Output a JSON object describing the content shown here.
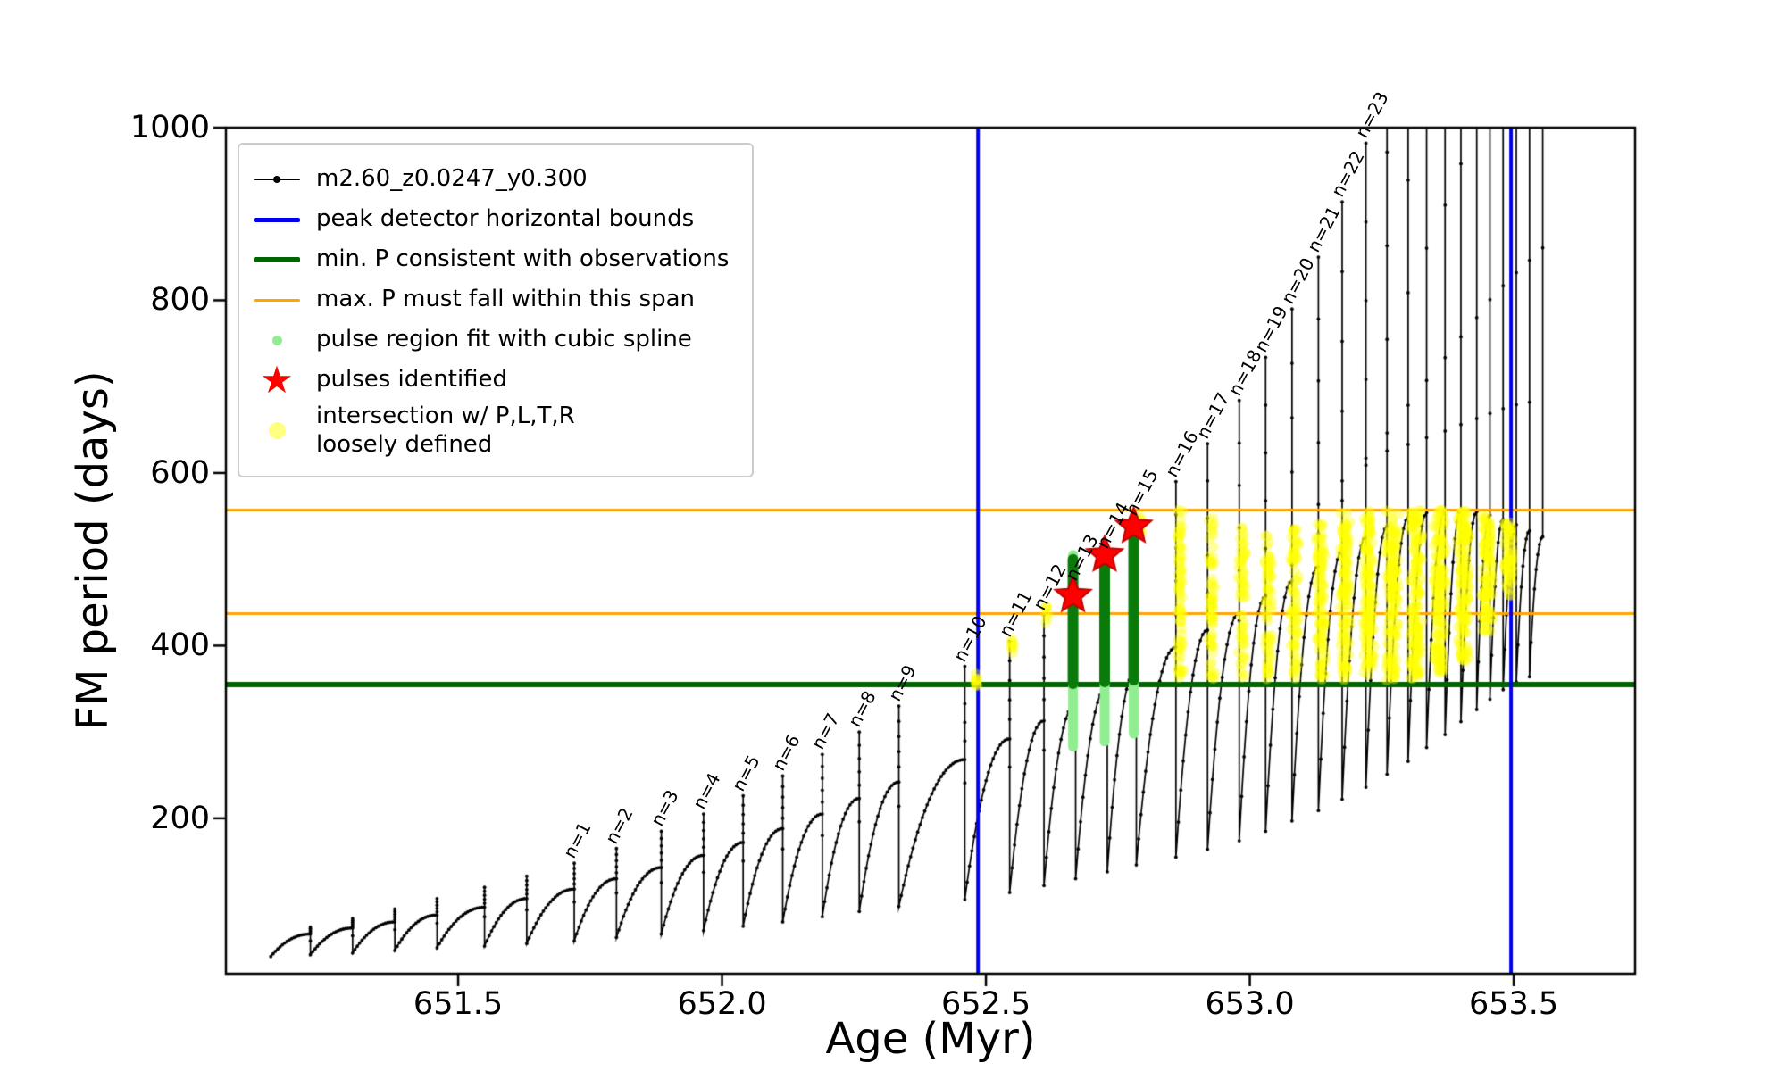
{
  "chart_data": {
    "type": "line",
    "title": "",
    "xlabel": "Age (Myr)",
    "ylabel": "FM period (days)",
    "xlim": [
      651.06,
      653.73
    ],
    "ylim": [
      20,
      1000
    ],
    "grid": false,
    "legend_position": "upper left",
    "x_ticks": [
      {
        "value": 651.5,
        "label": "651.5"
      },
      {
        "value": 652.0,
        "label": "652.0"
      },
      {
        "value": 652.5,
        "label": "652.5"
      },
      {
        "value": 653.0,
        "label": "653.0"
      },
      {
        "value": 653.5,
        "label": "653.5"
      }
    ],
    "y_ticks": [
      {
        "value": 200,
        "label": "200"
      },
      {
        "value": 400,
        "label": "400"
      },
      {
        "value": 600,
        "label": "600"
      },
      {
        "value": 800,
        "label": "800"
      },
      {
        "value": 1000,
        "label": "1000"
      }
    ],
    "series": {
      "name": "m2.60_z0.0247_y0.300",
      "color": "#000000",
      "start_x": 651.145,
      "teeth": [
        {
          "x": 651.22,
          "min": 40,
          "sh": 66,
          "pk": 74
        },
        {
          "x": 651.3,
          "min": 42,
          "sh": 73,
          "pk": 84
        },
        {
          "x": 651.38,
          "min": 44,
          "sh": 80,
          "pk": 95
        },
        {
          "x": 651.46,
          "min": 47,
          "sh": 88,
          "pk": 107
        },
        {
          "x": 651.55,
          "min": 50,
          "sh": 97,
          "pk": 120
        },
        {
          "x": 651.63,
          "min": 52,
          "sh": 107,
          "pk": 133
        },
        {
          "x": 651.72,
          "min": 55,
          "sh": 118,
          "pk": 148,
          "label": "n=1"
        },
        {
          "x": 651.8,
          "min": 58,
          "sh": 130,
          "pk": 165,
          "label": "n=2"
        },
        {
          "x": 651.885,
          "min": 62,
          "sh": 143,
          "pk": 185,
          "label": "n=3"
        },
        {
          "x": 651.965,
          "min": 66,
          "sh": 157,
          "pk": 205,
          "label": "n=4"
        },
        {
          "x": 652.04,
          "min": 70,
          "sh": 172,
          "pk": 226,
          "label": "n=5"
        },
        {
          "x": 652.115,
          "min": 75,
          "sh": 188,
          "pk": 249,
          "label": "n=6"
        },
        {
          "x": 652.19,
          "min": 80,
          "sh": 205,
          "pk": 274,
          "label": "n=7"
        },
        {
          "x": 652.26,
          "min": 86,
          "sh": 223,
          "pk": 300,
          "label": "n=8"
        },
        {
          "x": 652.335,
          "min": 92,
          "sh": 242,
          "pk": 330,
          "label": "n=9"
        },
        {
          "x": 652.46,
          "min": 98,
          "sh": 268,
          "pk": 376,
          "label": "n=10"
        },
        {
          "x": 652.545,
          "min": 106,
          "sh": 292,
          "pk": 405,
          "label": "n=11"
        },
        {
          "x": 652.61,
          "min": 114,
          "sh": 313,
          "pk": 436,
          "label": "n=12"
        },
        {
          "x": 652.67,
          "min": 122,
          "sh": 333,
          "pk": 470,
          "label": "n=13"
        },
        {
          "x": 652.73,
          "min": 130,
          "sh": 353,
          "pk": 507,
          "label": "n=14"
        },
        {
          "x": 652.785,
          "min": 138,
          "sh": 373,
          "pk": 545,
          "label": "n=15"
        },
        {
          "x": 652.86,
          "min": 146,
          "sh": 398,
          "pk": 590,
          "label": "n=16"
        },
        {
          "x": 652.92,
          "min": 155,
          "sh": 418,
          "pk": 634,
          "label": "n=17"
        },
        {
          "x": 652.98,
          "min": 164,
          "sh": 438,
          "pk": 684,
          "label": "n=18"
        },
        {
          "x": 653.03,
          "min": 174,
          "sh": 457,
          "pk": 734,
          "label": "n=19"
        },
        {
          "x": 653.08,
          "min": 185,
          "sh": 475,
          "pk": 790,
          "label": "n=20"
        },
        {
          "x": 653.13,
          "min": 197,
          "sh": 492,
          "pk": 850,
          "label": "n=21"
        },
        {
          "x": 653.175,
          "min": 209,
          "sh": 510,
          "pk": 914,
          "label": "n=22"
        },
        {
          "x": 653.22,
          "min": 222,
          "sh": 526,
          "pk": 982,
          "label": "n=23"
        },
        {
          "x": 653.26,
          "min": 236,
          "sh": 538,
          "pk": 1080
        },
        {
          "x": 653.3,
          "min": 251,
          "sh": 548,
          "pk": 1200
        },
        {
          "x": 653.335,
          "min": 266,
          "sh": 554,
          "pk": 1320
        },
        {
          "x": 653.37,
          "min": 282,
          "sh": 557,
          "pk": 1440
        },
        {
          "x": 653.4,
          "min": 297,
          "sh": 557,
          "pk": 1560
        },
        {
          "x": 653.43,
          "min": 312,
          "sh": 555,
          "pk": 1680
        },
        {
          "x": 653.455,
          "min": 326,
          "sh": 551,
          "pk": 1800
        },
        {
          "x": 653.48,
          "min": 338,
          "sh": 546,
          "pk": 1900
        },
        {
          "x": 653.505,
          "min": 349,
          "sh": 540,
          "pk": 2000
        },
        {
          "x": 653.53,
          "min": 358,
          "sh": 533,
          "pk": 2100
        },
        {
          "x": 653.555,
          "min": 364,
          "sh": 526,
          "pk": 2200
        }
      ]
    },
    "guides": {
      "vertical_blue": {
        "label": "peak detector horizontal bounds",
        "color": "#0000ee",
        "x": [
          652.485,
          653.495
        ]
      },
      "horizontal_green": {
        "label": "min. P consistent with observations",
        "color": "#006400",
        "y": 355
      },
      "horizontal_orange": {
        "label": "max. P must fall within this span",
        "color": "#ffa500",
        "y": [
          437,
          557
        ]
      }
    },
    "pulse_regions": {
      "label": "pulse region fit with cubic spline",
      "light_color": "#90ee90",
      "dark_color": "#0a7a0a",
      "bars": [
        {
          "x": 652.665,
          "light": [
            283,
            505
          ],
          "dark": [
            356,
            500
          ]
        },
        {
          "x": 652.725,
          "light": [
            289,
            512
          ],
          "dark": [
            358,
            507
          ]
        },
        {
          "x": 652.78,
          "light": [
            298,
            540
          ],
          "dark": [
            360,
            535
          ]
        }
      ]
    },
    "pulses_identified": {
      "label": "pulses identified",
      "color": "#ff0000",
      "points": [
        {
          "x": 652.665,
          "y": 458
        },
        {
          "x": 652.725,
          "y": 505
        },
        {
          "x": 652.78,
          "y": 538
        }
      ]
    },
    "intersection": {
      "label": "intersection w/ P,L,T,R\nloosely defined",
      "color": "#ffff00",
      "clusters": [
        {
          "x": 652.482,
          "y0": 352,
          "y1": 368,
          "w": 0.004,
          "n": 8
        },
        {
          "x": 652.55,
          "y0": 390,
          "y1": 412,
          "w": 0.004,
          "n": 8
        },
        {
          "x": 652.615,
          "y0": 426,
          "y1": 448,
          "w": 0.004,
          "n": 7
        },
        {
          "x": 652.792,
          "y0": 526,
          "y1": 552,
          "w": 0.005,
          "n": 10
        },
        {
          "x": 652.868,
          "y0": 360,
          "y1": 558,
          "w": 0.007,
          "n": 70
        },
        {
          "x": 652.928,
          "y0": 360,
          "y1": 548,
          "w": 0.007,
          "n": 60
        },
        {
          "x": 652.985,
          "y0": 360,
          "y1": 538,
          "w": 0.008,
          "n": 58
        },
        {
          "x": 653.035,
          "y0": 360,
          "y1": 528,
          "w": 0.008,
          "n": 60
        },
        {
          "x": 653.085,
          "y0": 360,
          "y1": 540,
          "w": 0.009,
          "n": 72
        },
        {
          "x": 653.135,
          "y0": 360,
          "y1": 548,
          "w": 0.01,
          "n": 95
        },
        {
          "x": 653.18,
          "y0": 360,
          "y1": 554,
          "w": 0.011,
          "n": 115
        },
        {
          "x": 653.225,
          "y0": 360,
          "y1": 556,
          "w": 0.012,
          "n": 135
        },
        {
          "x": 653.27,
          "y0": 360,
          "y1": 557,
          "w": 0.013,
          "n": 150
        },
        {
          "x": 653.315,
          "y0": 362,
          "y1": 557,
          "w": 0.013,
          "n": 150
        },
        {
          "x": 653.36,
          "y0": 368,
          "y1": 557,
          "w": 0.013,
          "n": 148
        },
        {
          "x": 653.405,
          "y0": 382,
          "y1": 556,
          "w": 0.013,
          "n": 140
        },
        {
          "x": 653.45,
          "y0": 415,
          "y1": 552,
          "w": 0.012,
          "n": 105
        },
        {
          "x": 653.49,
          "y0": 455,
          "y1": 546,
          "w": 0.01,
          "n": 65
        }
      ]
    }
  },
  "legend": {
    "items": [
      {
        "type": "line-dot",
        "color": "#000000",
        "weight": 2,
        "label": "m2.60_z0.0247_y0.300"
      },
      {
        "type": "line",
        "color": "#0000ee",
        "weight": 5,
        "label": "peak detector horizontal bounds"
      },
      {
        "type": "line",
        "color": "#006400",
        "weight": 6,
        "label": "min. P consistent with observations"
      },
      {
        "type": "line",
        "color": "#ffa500",
        "weight": 3,
        "label": "max. P must fall within this span"
      },
      {
        "type": "dot",
        "color": "#90ee90",
        "size": 11,
        "label": "pulse region fit with cubic spline"
      },
      {
        "type": "star",
        "color": "#ff0000",
        "size": 42,
        "glyph": "★",
        "label": "pulses identified"
      },
      {
        "type": "dot",
        "color": "#ffff80",
        "size": 19,
        "label": "intersection w/ P,L,T,R\nloosely defined"
      }
    ]
  }
}
